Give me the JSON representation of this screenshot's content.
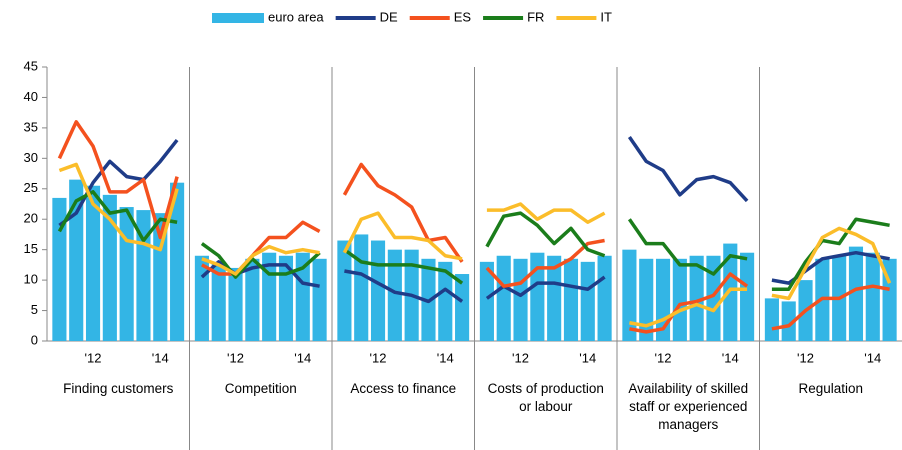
{
  "chart_data": {
    "type": "panel-bar-line",
    "ylim": [
      0,
      45
    ],
    "yticks": [
      0,
      5,
      10,
      15,
      20,
      25,
      30,
      35,
      40,
      45
    ],
    "categories": [
      null,
      null,
      "'12",
      null,
      null,
      null,
      "'14",
      null
    ],
    "series": [
      {
        "name": "euro area",
        "color": "#33b5e5",
        "kind": "bar"
      },
      {
        "name": "DE",
        "color": "#1f3c88",
        "kind": "line"
      },
      {
        "name": "ES",
        "color": "#f4511e",
        "kind": "line"
      },
      {
        "name": "FR",
        "color": "#1b7d1b",
        "kind": "line"
      },
      {
        "name": "IT",
        "color": "#fbbd2a",
        "kind": "line"
      }
    ],
    "panels": [
      {
        "title": "Finding customers",
        "values": [
          [
            23.5,
            26.5,
            25.5,
            24,
            22,
            21.5,
            21,
            26
          ],
          [
            19,
            21,
            26,
            29.5,
            27,
            26.5,
            29.5,
            33
          ],
          [
            30,
            36,
            32,
            24.5,
            24.5,
            26.5,
            17,
            27
          ],
          [
            18,
            23,
            24.5,
            21,
            21.5,
            16.5,
            20,
            19.5
          ],
          [
            28,
            29,
            22.5,
            20,
            16.5,
            16,
            15,
            25
          ]
        ]
      },
      {
        "title": "Competition",
        "values": [
          [
            14,
            13,
            12,
            13.5,
            14.5,
            14,
            14.5,
            13.5
          ],
          [
            10.5,
            13,
            11,
            12,
            12.5,
            12.5,
            9.5,
            9
          ],
          [
            12.5,
            11,
            11,
            14,
            17,
            17,
            19.5,
            18
          ],
          [
            16,
            14,
            10.5,
            13.5,
            11,
            11,
            12,
            14.5
          ],
          [
            13.5,
            12.5,
            11,
            14,
            15.5,
            14.5,
            15,
            14.5
          ]
        ]
      },
      {
        "title": "Access to finance",
        "values": [
          [
            16.5,
            17.5,
            16.5,
            15,
            15,
            13.5,
            13,
            11
          ],
          [
            11.5,
            11,
            9.5,
            8,
            7.5,
            6.5,
            8.5,
            6.5
          ],
          [
            24,
            29,
            25.5,
            24,
            22,
            16.5,
            17,
            13
          ],
          [
            15,
            13,
            12.5,
            12.5,
            12.5,
            12,
            11.5,
            9.5
          ],
          [
            14.5,
            20,
            21,
            17,
            17,
            16.5,
            14,
            13.5
          ]
        ]
      },
      {
        "title": "Costs of production or labour",
        "values": [
          [
            13,
            14,
            13.5,
            14.5,
            14,
            13.5,
            13,
            14
          ],
          [
            7,
            9,
            7.5,
            9.5,
            9.5,
            9,
            8.5,
            10.5
          ],
          [
            12,
            9,
            9.5,
            12,
            12,
            13.5,
            16,
            16.5
          ],
          [
            15.5,
            20.5,
            21,
            19,
            16,
            18.5,
            15,
            14
          ],
          [
            21.5,
            21.5,
            22.5,
            20,
            21.5,
            21.5,
            19.5,
            21
          ]
        ]
      },
      {
        "title": "Availability of skilled staff or experienced managers",
        "values": [
          [
            15,
            13.5,
            13.5,
            13.5,
            14,
            14,
            16,
            14.5
          ],
          [
            33.5,
            29.5,
            28,
            24,
            26.5,
            27,
            26,
            23
          ],
          [
            2,
            1.5,
            2,
            6,
            6.5,
            7.5,
            11,
            9
          ],
          [
            20,
            16,
            16,
            12.5,
            12.5,
            11,
            14,
            13.5
          ],
          [
            3,
            2.5,
            3.5,
            5,
            6,
            5,
            8.5,
            8.5
          ]
        ]
      },
      {
        "title": "Regulation",
        "values": [
          [
            7,
            6.5,
            10,
            13.5,
            14,
            15.5,
            14.5,
            13.5
          ],
          [
            10,
            9.5,
            11.5,
            13.5,
            14,
            14.5,
            14,
            13.5
          ],
          [
            2,
            2.5,
            5,
            7,
            7,
            8.5,
            9,
            8.5
          ],
          [
            8.5,
            8.5,
            13,
            16.5,
            16,
            20,
            19.5,
            19
          ],
          [
            7.5,
            7,
            12,
            17,
            18.5,
            17.5,
            16,
            9.5
          ]
        ]
      }
    ]
  }
}
